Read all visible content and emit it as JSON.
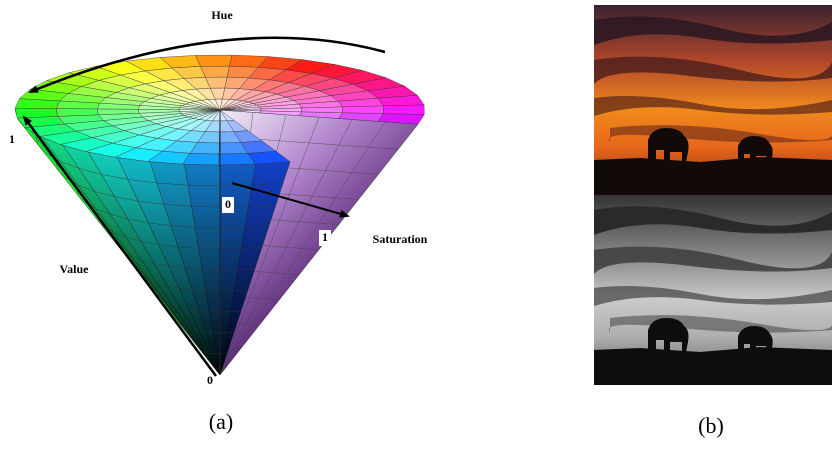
{
  "figure": {
    "panel_a": {
      "hue_label": "Hue",
      "value_max": "1",
      "value_label": "Value",
      "value_min": "0",
      "saturation_min": "0",
      "saturation_max": "1",
      "saturation_label": "Saturation",
      "caption": "(a)"
    },
    "panel_b": {
      "caption": "(b)"
    }
  }
}
